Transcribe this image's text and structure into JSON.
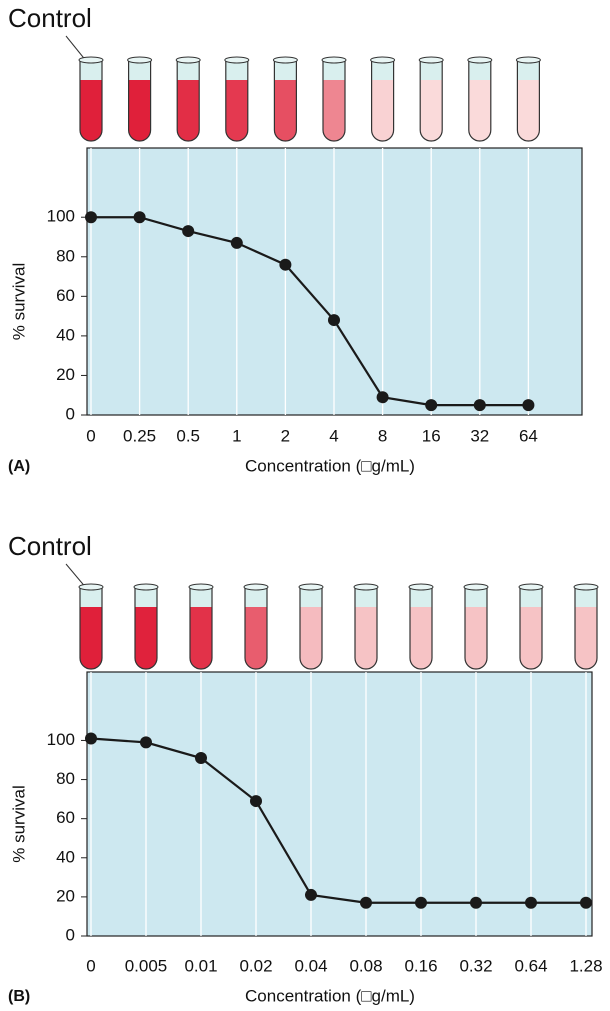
{
  "chart_data": [
    {
      "type": "line",
      "panel_label": "(A)",
      "annotation": "Control",
      "x_label": "Concentration (□g/mL)",
      "y_label": "% survival",
      "categories": [
        "0",
        "0.25",
        "0.5",
        "1",
        "2",
        "4",
        "8",
        "16",
        "32",
        "64"
      ],
      "values": [
        100,
        100,
        93,
        87,
        76,
        48,
        9,
        5,
        5,
        5
      ],
      "color": "#1a1a1a",
      "background": "#cde8f0",
      "grid": true,
      "ylim": [
        0,
        135
      ],
      "yticks": [
        0,
        20,
        40,
        60,
        80,
        100
      ]
    },
    {
      "type": "line",
      "panel_label": "(B)",
      "annotation": "Control",
      "x_label": "Concentration (□g/mL)",
      "y_label": "% survival",
      "categories": [
        "0",
        "0.005",
        "0.01",
        "0.02",
        "0.04",
        "0.08",
        "0.16",
        "0.32",
        "0.64",
        "1.28"
      ],
      "values": [
        101,
        99,
        91,
        69,
        21,
        17,
        17,
        17,
        17,
        17
      ],
      "color": "#1a1a1a",
      "background": "#cde8f0",
      "grid": true,
      "ylim": [
        0,
        135
      ],
      "yticks": [
        0,
        20,
        40,
        60,
        80,
        100
      ]
    }
  ]
}
